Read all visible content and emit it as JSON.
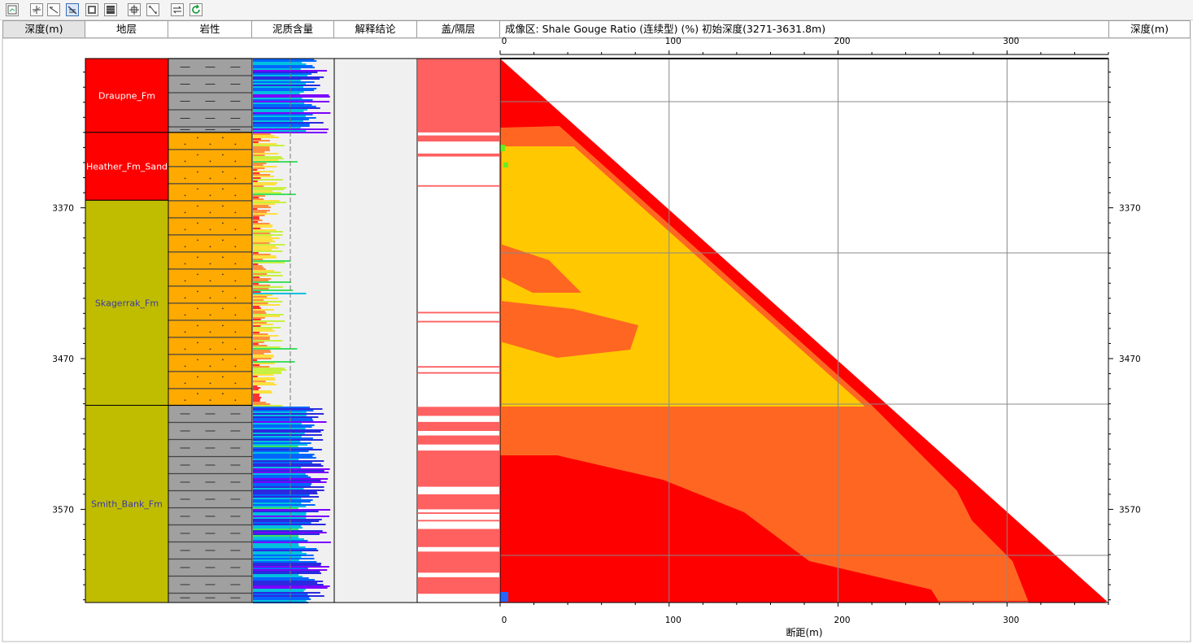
{
  "toolbar": {
    "buttons": [
      {
        "name": "zoom-fit-icon"
      },
      {
        "name": "pan-icon"
      },
      {
        "name": "draw-line-icon"
      },
      {
        "name": "fault-display-icon"
      },
      {
        "name": "image-mode-icon"
      },
      {
        "name": "grid-fill-icon"
      },
      {
        "name": "crosshair-icon"
      },
      {
        "name": "measure-icon"
      },
      {
        "name": "swap-icon"
      },
      {
        "name": "refresh-icon"
      }
    ],
    "accent": "#3b6fb6"
  },
  "header": {
    "depth_left": "深度(m)",
    "formation": "地层",
    "lithology": "岩性",
    "shale_content": "泥质含量",
    "interpretation": "解释结论",
    "seal_barrier": "盖/隔层",
    "image_title": "成像区: Shale Gouge Ratio (连续型) (%)  初始深度(3271-3631.8m)",
    "depth_right": "深度(m)"
  },
  "depth_axis": {
    "ticks": [
      "3370",
      "3470",
      "3570"
    ],
    "tick_values": [
      3370,
      3470,
      3570
    ],
    "top_depth": 3271,
    "bottom_depth": 3631.8
  },
  "formations": [
    {
      "name": "Draupne_Fm",
      "top": 3271,
      "bottom": 3320,
      "color": "#ff0000",
      "text_color": "#ffffff"
    },
    {
      "name": "Heather_Fm_Sand",
      "top": 3320,
      "bottom": 3365,
      "color": "#ff0000",
      "text_color": "#ffffff"
    },
    {
      "name": "Skagerrak_Fm",
      "top": 3365,
      "bottom": 3501,
      "color": "#c0bc00",
      "text_color": "#3a3aa8"
    },
    {
      "name": "Smith_Bank_Fm",
      "top": 3501,
      "bottom": 3631.8,
      "color": "#c0bc00",
      "text_color": "#3a3aa8"
    }
  ],
  "lithology_units": [
    {
      "type": "shale",
      "top": 3271,
      "bottom": 3320,
      "color": "#a0a0a0"
    },
    {
      "type": "sandstone",
      "top": 3320,
      "bottom": 3501,
      "color": "#ffaa00"
    },
    {
      "type": "shale",
      "top": 3501,
      "bottom": 3631.8,
      "color": "#a0a0a0"
    }
  ],
  "seal_layers": [
    {
      "top": 3271,
      "bottom": 3320
    },
    {
      "top": 3322,
      "bottom": 3326
    },
    {
      "top": 3334,
      "bottom": 3336
    },
    {
      "top": 3355,
      "bottom": 3356
    },
    {
      "top": 3439,
      "bottom": 3440
    },
    {
      "top": 3445,
      "bottom": 3446
    },
    {
      "top": 3475,
      "bottom": 3476
    },
    {
      "top": 3479,
      "bottom": 3480
    },
    {
      "top": 3502,
      "bottom": 3508
    },
    {
      "top": 3512,
      "bottom": 3518
    },
    {
      "top": 3521,
      "bottom": 3527
    },
    {
      "top": 3531,
      "bottom": 3555
    },
    {
      "top": 3560,
      "bottom": 3570
    },
    {
      "top": 3572,
      "bottom": 3573
    },
    {
      "top": 3577,
      "bottom": 3578
    },
    {
      "top": 3583,
      "bottom": 3595
    },
    {
      "top": 3598,
      "bottom": 3612
    },
    {
      "top": 3615,
      "bottom": 3626
    }
  ],
  "seal_color": "#ff6060",
  "image_axis": {
    "top_ticks": [
      "0",
      "100",
      "200",
      "300"
    ],
    "bottom_ticks": [
      "0",
      "100",
      "200",
      "300"
    ],
    "tick_values": [
      0,
      100,
      200,
      300
    ],
    "xlabel": "断距(m)",
    "xmax": 360
  },
  "sgr_colors": {
    "red": "#ff0000",
    "orange": "#ff6622",
    "yellow": "#ffc800",
    "green": "#66ee22",
    "blue": "#2266ff"
  },
  "shale_curve_colors": [
    "#7a00ff",
    "#2a2ae0",
    "#0066ff",
    "#00c0e0",
    "#40e060",
    "#c8f040",
    "#ffe040",
    "#ff9040",
    "#ff3030"
  ]
}
